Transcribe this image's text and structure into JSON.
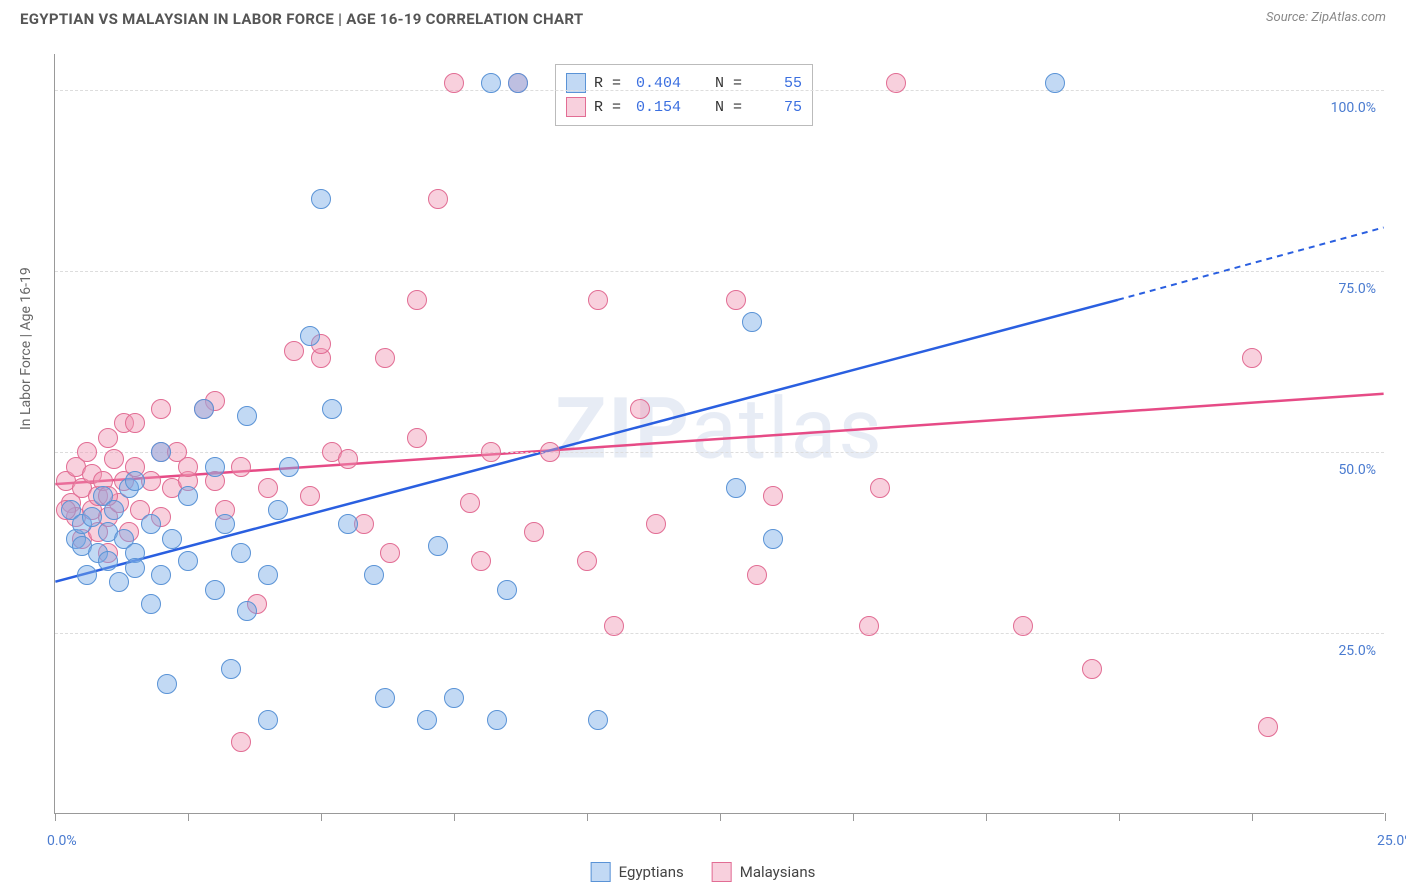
{
  "header": {
    "title": "EGYPTIAN VS MALAYSIAN IN LABOR FORCE | AGE 16-19 CORRELATION CHART",
    "source": "Source: ZipAtlas.com"
  },
  "watermark": {
    "zip": "ZIP",
    "atlas": "atlas"
  },
  "chart": {
    "type": "scatter",
    "ylabel": "In Labor Force | Age 16-19",
    "background_color": "#ffffff",
    "grid_color": "#dddddd",
    "axis_color": "#999999",
    "x_range": [
      0,
      25
    ],
    "y_range": [
      0,
      105
    ],
    "x_ticks": [
      0,
      2.5,
      5,
      7.5,
      10,
      12.5,
      15,
      17.5,
      20,
      22.5,
      25
    ],
    "x_tick_show_line": true,
    "x_labels": [
      {
        "v": 0,
        "t": "0.0%"
      },
      {
        "v": 25,
        "t": "25.0%"
      }
    ],
    "y_gridlines": [
      25,
      50,
      75,
      100
    ],
    "y_labels": [
      {
        "v": 25,
        "t": "25.0%"
      },
      {
        "v": 50,
        "t": "50.0%"
      },
      {
        "v": 75,
        "t": "75.0%"
      },
      {
        "v": 100,
        "t": "100.0%"
      }
    ],
    "series": {
      "egyptians": {
        "label": "Egyptians",
        "fill": "rgba(120,170,230,0.45)",
        "stroke": "#5a93d6",
        "line_color": "#2a5fe0",
        "marker_r": 10,
        "R": "0.404",
        "N": "55",
        "trend": {
          "x1": 0,
          "y1": 32,
          "x2_solid": 20,
          "y2_solid": 71,
          "x2_dash": 25,
          "y2_dash": 81
        },
        "points": [
          [
            0.3,
            42
          ],
          [
            0.4,
            38
          ],
          [
            0.5,
            40
          ],
          [
            0.5,
            37
          ],
          [
            0.7,
            41
          ],
          [
            0.8,
            36
          ],
          [
            0.9,
            44
          ],
          [
            1.0,
            39
          ],
          [
            1.0,
            35
          ],
          [
            1.1,
            42
          ],
          [
            1.2,
            32
          ],
          [
            1.3,
            38
          ],
          [
            1.4,
            45
          ],
          [
            1.5,
            36
          ],
          [
            1.5,
            46
          ],
          [
            1.5,
            34
          ],
          [
            1.8,
            29
          ],
          [
            1.8,
            40
          ],
          [
            2.0,
            33
          ],
          [
            2.0,
            50
          ],
          [
            2.1,
            18
          ],
          [
            2.2,
            38
          ],
          [
            2.5,
            35
          ],
          [
            2.5,
            44
          ],
          [
            2.8,
            56
          ],
          [
            3.0,
            31
          ],
          [
            3.0,
            48
          ],
          [
            3.2,
            40
          ],
          [
            3.3,
            20
          ],
          [
            3.5,
            36
          ],
          [
            3.6,
            28
          ],
          [
            3.6,
            55
          ],
          [
            4.0,
            13
          ],
          [
            4.0,
            33
          ],
          [
            4.2,
            42
          ],
          [
            4.4,
            48
          ],
          [
            4.8,
            66
          ],
          [
            5.0,
            85
          ],
          [
            5.2,
            56
          ],
          [
            5.5,
            40
          ],
          [
            6.0,
            33
          ],
          [
            6.2,
            16
          ],
          [
            7.0,
            13
          ],
          [
            7.2,
            37
          ],
          [
            7.5,
            16
          ],
          [
            8.2,
            101
          ],
          [
            8.3,
            13
          ],
          [
            8.5,
            31
          ],
          [
            8.7,
            101
          ],
          [
            10.2,
            13
          ],
          [
            12.8,
            45
          ],
          [
            13.1,
            68
          ],
          [
            13.5,
            38
          ],
          [
            18.8,
            101
          ],
          [
            0.6,
            33
          ]
        ]
      },
      "malaysians": {
        "label": "Malaysians",
        "fill": "rgba(240,150,180,0.45)",
        "stroke": "#e26d94",
        "line_color": "#e64b86",
        "marker_r": 10,
        "R": "0.154",
        "N": "75",
        "trend": {
          "x1": 0,
          "y1": 45.5,
          "x2_solid": 25,
          "y2_solid": 58,
          "x2_dash": 25,
          "y2_dash": 58
        },
        "points": [
          [
            0.2,
            46
          ],
          [
            0.3,
            43
          ],
          [
            0.4,
            48
          ],
          [
            0.4,
            41
          ],
          [
            0.5,
            45
          ],
          [
            0.5,
            38
          ],
          [
            0.6,
            50
          ],
          [
            0.7,
            42
          ],
          [
            0.7,
            47
          ],
          [
            0.8,
            44
          ],
          [
            0.8,
            39
          ],
          [
            0.9,
            46
          ],
          [
            1.0,
            52
          ],
          [
            1.0,
            41
          ],
          [
            1.0,
            36
          ],
          [
            1.1,
            49
          ],
          [
            1.2,
            43
          ],
          [
            1.3,
            46
          ],
          [
            1.3,
            54
          ],
          [
            1.4,
            39
          ],
          [
            1.5,
            48
          ],
          [
            1.5,
            54
          ],
          [
            1.6,
            42
          ],
          [
            1.8,
            46
          ],
          [
            2.0,
            50
          ],
          [
            2.0,
            56
          ],
          [
            2.0,
            41
          ],
          [
            2.2,
            45
          ],
          [
            2.3,
            50
          ],
          [
            2.5,
            46
          ],
          [
            2.5,
            48
          ],
          [
            3.0,
            57
          ],
          [
            3.0,
            46
          ],
          [
            3.2,
            42
          ],
          [
            3.5,
            10
          ],
          [
            3.5,
            48
          ],
          [
            3.8,
            29
          ],
          [
            4.0,
            45
          ],
          [
            4.5,
            64
          ],
          [
            4.8,
            44
          ],
          [
            5.0,
            63
          ],
          [
            5.0,
            65
          ],
          [
            5.2,
            50
          ],
          [
            5.5,
            49
          ],
          [
            5.8,
            40
          ],
          [
            6.2,
            63
          ],
          [
            6.3,
            36
          ],
          [
            6.8,
            71
          ],
          [
            6.8,
            52
          ],
          [
            7.2,
            85
          ],
          [
            7.5,
            101
          ],
          [
            7.8,
            43
          ],
          [
            8.0,
            35
          ],
          [
            8.2,
            50
          ],
          [
            8.7,
            101
          ],
          [
            9.0,
            39
          ],
          [
            9.3,
            50
          ],
          [
            10.0,
            35
          ],
          [
            10.2,
            71
          ],
          [
            10.5,
            26
          ],
          [
            11.0,
            56
          ],
          [
            11.3,
            40
          ],
          [
            12.8,
            71
          ],
          [
            13.2,
            33
          ],
          [
            13.5,
            44
          ],
          [
            15.3,
            26
          ],
          [
            15.5,
            45
          ],
          [
            15.8,
            101
          ],
          [
            18.2,
            26
          ],
          [
            19.5,
            20
          ],
          [
            22.5,
            63
          ],
          [
            22.8,
            12
          ],
          [
            0.2,
            42
          ],
          [
            1.0,
            44
          ],
          [
            2.8,
            56
          ]
        ]
      }
    }
  },
  "legend_top": {
    "r_prefix": "R =",
    "n_prefix": "N ="
  }
}
